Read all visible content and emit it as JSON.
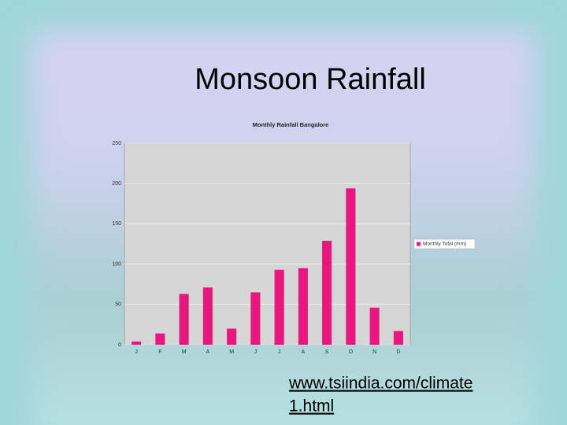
{
  "slide_title": "Monsoon Rainfall",
  "chart_data": {
    "type": "bar",
    "title": "Monthly Rainfall Bangalore",
    "categories": [
      "J",
      "F",
      "M",
      "A",
      "M",
      "J",
      "J",
      "A",
      "S",
      "O",
      "N",
      "D"
    ],
    "series": [
      {
        "name": "Monthly Total (mm)",
        "color": "#e8177d",
        "values": [
          4,
          14,
          63,
          71,
          20,
          65,
          93,
          95,
          129,
          194,
          46,
          17
        ]
      }
    ],
    "ylim": [
      0,
      250
    ],
    "yticks": [
      0,
      50,
      100,
      150,
      200,
      250
    ],
    "grid": true,
    "legend": "right"
  },
  "url_lines": [
    "www.tsiindia.com/climate",
    "1.html"
  ]
}
